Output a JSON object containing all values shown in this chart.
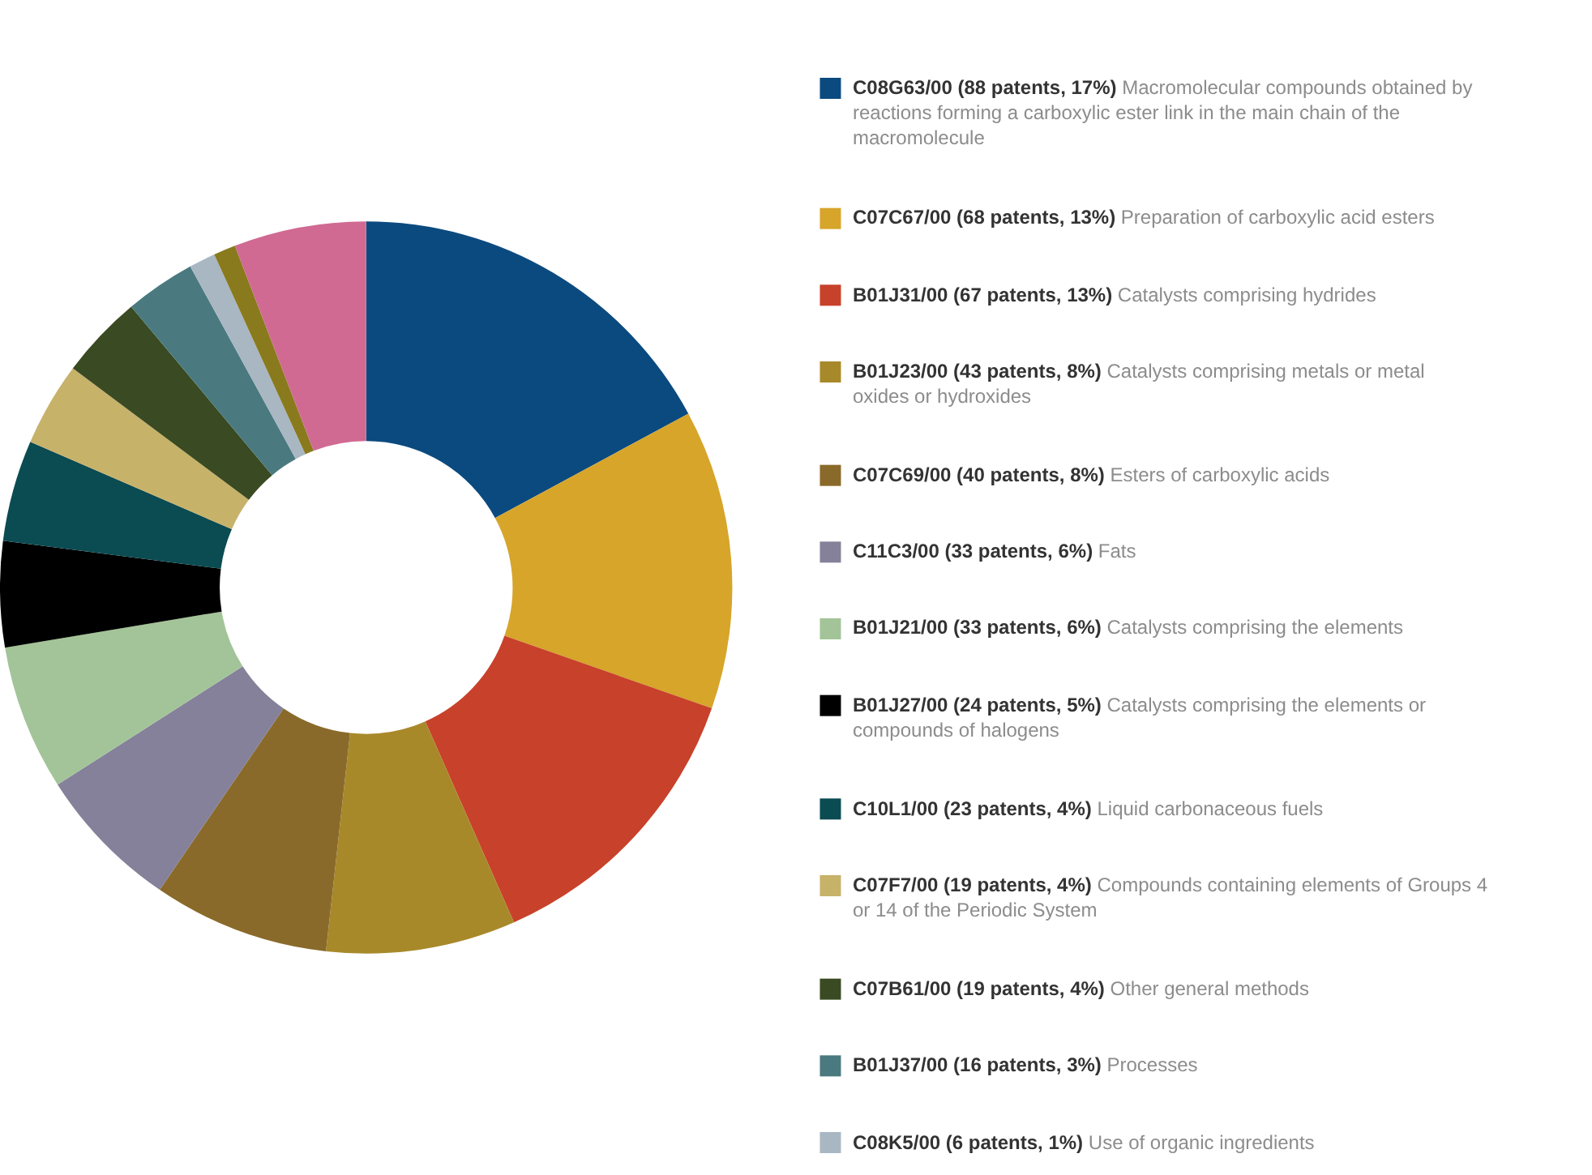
{
  "chart_data": {
    "type": "donut",
    "legend": "right",
    "categories": [
      "C08G63/00 (88 patents, 17%) Macromolecular compounds obtained by reactions forming a carboxylic ester link in the main chain of the macromolecule",
      "C07C67/00 (68 patents, 13%) Preparation of carboxylic acid esters",
      "B01J31/00 (67 patents, 13%) Catalysts comprising hydrides",
      "B01J23/00 (43 patents, 8%) Catalysts comprising metals or metal oxides or hydroxides",
      "C07C69/00 (40 patents, 8%) Esters of carboxylic acids",
      "C11C3/00 (33 patents, 6%) Fats",
      "B01J21/00 (33 patents, 6%) Catalysts comprising the elements",
      "B01J27/00 (24 patents, 5%) Catalysts comprising the elements or compounds of halogens",
      "C10L1/00 (23 patents, 4%) Liquid carbonaceous fuels",
      "C07F7/00 (19 patents, 4%) Compounds containing elements of Groups 4 or 14 of the Periodic System",
      "C07B61/00 (19 patents, 4%) Other general methods",
      "B01J37/00 (16 patents, 3%) Processes",
      "C08K5/00 (6 patents, 1%) Use of organic ingredients",
      null,
      null
    ],
    "values": [
      88,
      68,
      67,
      43,
      40,
      33,
      33,
      24,
      23,
      19,
      19,
      16,
      6,
      5,
      30
    ],
    "colors": [
      "#0b4a7f",
      "#d6a52a",
      "#c8412a",
      "#a8892a",
      "#8a6a2a",
      "#85819a",
      "#a3c498",
      "#000000",
      "#0b4b52",
      "#c7b26a",
      "#3a4a22",
      "#4a7a80",
      "#a9b7c3",
      "#8a7a1e",
      "#d06a92"
    ]
  }
}
